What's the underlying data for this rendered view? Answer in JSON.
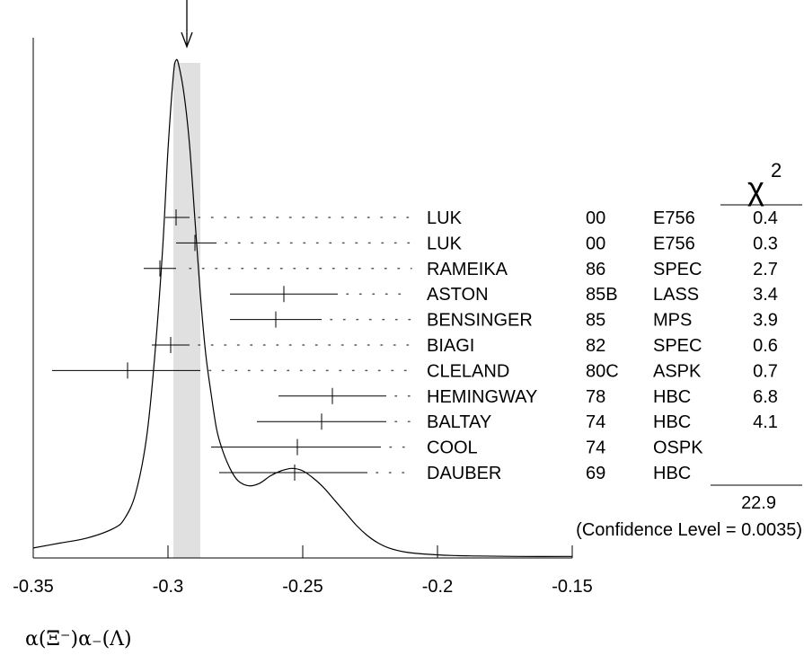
{
  "chart_data": {
    "type": "ideogram",
    "xlabel": "α(Ξ⁻)α₋(Λ)",
    "xlim": [
      -0.35,
      -0.15
    ],
    "xticks": [
      -0.35,
      -0.3,
      -0.25,
      -0.2,
      -0.15
    ],
    "xtick_labels": [
      "-0.35",
      "-0.3",
      "-0.25",
      "-0.2",
      "-0.15"
    ],
    "average": {
      "value": -0.293,
      "band": [
        -0.298,
        -0.288
      ]
    },
    "chi2_header": "χ",
    "chi2_header_sup": "2",
    "chi2_total": "22.9",
    "confidence_level_text": "(Confidence Level = 0.0035)",
    "measurements": [
      {
        "author": "LUK",
        "year": "00",
        "technique": "E756",
        "chi2": "0.4",
        "value": -0.297,
        "low": -0.301,
        "high": -0.292
      },
      {
        "author": "LUK",
        "year": "00",
        "technique": "E756",
        "chi2": "0.3",
        "value": -0.29,
        "low": -0.297,
        "high": -0.282
      },
      {
        "author": "RAMEIKA",
        "year": "86",
        "technique": "SPEC",
        "chi2": "2.7",
        "value": -0.303,
        "low": -0.309,
        "high": -0.297
      },
      {
        "author": "ASTON",
        "year": "85B",
        "technique": "LASS",
        "chi2": "3.4",
        "value": -0.257,
        "low": -0.277,
        "high": -0.237
      },
      {
        "author": "BENSINGER",
        "year": "85",
        "technique": "MPS",
        "chi2": "3.9",
        "value": -0.26,
        "low": -0.277,
        "high": -0.243
      },
      {
        "author": "BIAGI",
        "year": "82",
        "technique": "SPEC",
        "chi2": "0.6",
        "value": -0.299,
        "low": -0.306,
        "high": -0.292
      },
      {
        "author": "CLELAND",
        "year": "80C",
        "technique": "ASPK",
        "chi2": "0.7",
        "value": -0.315,
        "low": -0.343,
        "high": -0.288
      },
      {
        "author": "HEMINGWAY",
        "year": "78",
        "technique": "HBC",
        "chi2": "6.8",
        "value": -0.239,
        "low": -0.259,
        "high": -0.219
      },
      {
        "author": "BALTAY",
        "year": "74",
        "technique": "HBC",
        "chi2": "4.1",
        "value": -0.243,
        "low": -0.267,
        "high": -0.219
      },
      {
        "author": "COOL",
        "year": "74",
        "technique": "OSPK",
        "chi2": "",
        "value": -0.252,
        "low": -0.284,
        "high": -0.221
      },
      {
        "author": "DAUBER",
        "year": "69",
        "technique": "HBC",
        "chi2": "",
        "value": -0.253,
        "low": -0.281,
        "high": -0.226
      }
    ],
    "ideogram_curve": [
      [
        -0.35,
        0.02
      ],
      [
        -0.34,
        0.03
      ],
      [
        -0.33,
        0.04
      ],
      [
        -0.32,
        0.06
      ],
      [
        -0.316,
        0.08
      ],
      [
        -0.312,
        0.13
      ],
      [
        -0.308,
        0.24
      ],
      [
        -0.305,
        0.4
      ],
      [
        -0.302,
        0.62
      ],
      [
        -0.3,
        0.82
      ],
      [
        -0.298,
        0.97
      ],
      [
        -0.297,
        1.0
      ],
      [
        -0.296,
        0.99
      ],
      [
        -0.294,
        0.93
      ],
      [
        -0.292,
        0.83
      ],
      [
        -0.29,
        0.68
      ],
      [
        -0.288,
        0.53
      ],
      [
        -0.286,
        0.41
      ],
      [
        -0.284,
        0.33
      ],
      [
        -0.282,
        0.26
      ],
      [
        -0.28,
        0.22
      ],
      [
        -0.277,
        0.18
      ],
      [
        -0.274,
        0.155
      ],
      [
        -0.27,
        0.145
      ],
      [
        -0.266,
        0.15
      ],
      [
        -0.262,
        0.165
      ],
      [
        -0.258,
        0.175
      ],
      [
        -0.254,
        0.18
      ],
      [
        -0.25,
        0.175
      ],
      [
        -0.246,
        0.16
      ],
      [
        -0.242,
        0.14
      ],
      [
        -0.238,
        0.115
      ],
      [
        -0.234,
        0.09
      ],
      [
        -0.23,
        0.065
      ],
      [
        -0.226,
        0.045
      ],
      [
        -0.222,
        0.03
      ],
      [
        -0.218,
        0.02
      ],
      [
        -0.212,
        0.012
      ],
      [
        -0.205,
        0.008
      ],
      [
        -0.195,
        0.005
      ],
      [
        -0.185,
        0.004
      ],
      [
        -0.17,
        0.003
      ],
      [
        -0.15,
        0.003
      ]
    ],
    "colors": {
      "line": "#000000",
      "band": "#e0e0e0",
      "dots": "#555555"
    }
  }
}
